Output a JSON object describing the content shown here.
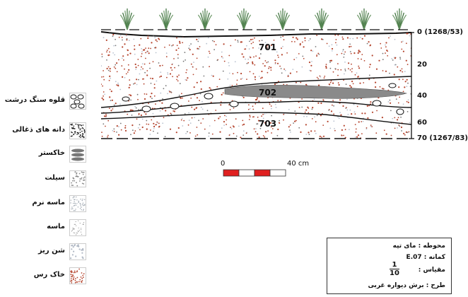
{
  "legend": [
    {
      "label": "قلوه سنگ درشت",
      "pattern": "cobble"
    },
    {
      "label": "دانه های ذغالی",
      "pattern": "charcoal"
    },
    {
      "label": "خاکستر",
      "pattern": "ash"
    },
    {
      "label": "سیلت",
      "pattern": "silt"
    },
    {
      "label": "ماسه نرم",
      "pattern": "finesand"
    },
    {
      "label": "ماسه",
      "pattern": "sand"
    },
    {
      "label": "شن ریز",
      "pattern": "gravel"
    },
    {
      "label": "خاک رس",
      "pattern": "clay"
    }
  ],
  "section": {
    "layers": [
      "701",
      "702",
      "703"
    ],
    "depths": [
      "0 (1268/53)",
      "20",
      "40",
      "60",
      "70 (1267/83)"
    ]
  },
  "scale_bar": {
    "start": "0",
    "end": "40 cm"
  },
  "info_box": {
    "site": "محوطه : مای تپه",
    "trench": "کمانه :",
    "trench_code": "E.07",
    "scale_label": "مقیاس :",
    "scale_num": "1",
    "scale_den": "10",
    "plan": "طرح : برش دیواره غربی"
  },
  "colors": {
    "clay_dot": "#b5452e",
    "ash": "#8a8a8a",
    "scale_red": "#e02020",
    "line": "#111111"
  }
}
